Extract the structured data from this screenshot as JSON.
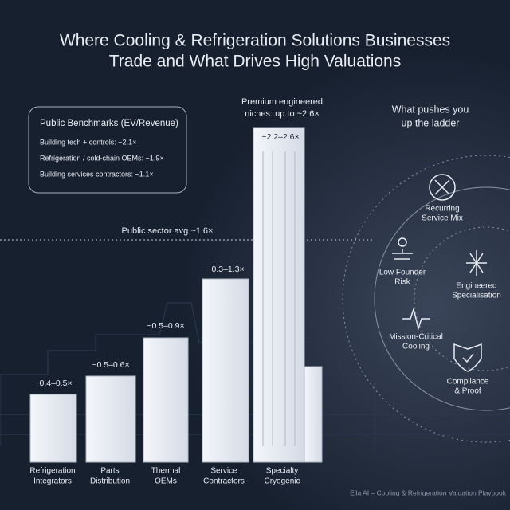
{
  "title": [
    "Where Cooling & Refrigeration Solutions Businesses",
    "Trade and What Drives High Valuations"
  ],
  "benchmarks": {
    "title": "Public Benchmarks (EV/Revenue)",
    "items": [
      "Building tech + controls: ~2.1×",
      "Refrigeration / cold-chain OEMs: ~1.9×",
      "Building services contractors: ~1.1×"
    ]
  },
  "sector_avg": "Public sector avg ~1.6×",
  "premium_note": [
    "Premium engineered",
    "niches: up to ~2.6×"
  ],
  "buildings": [
    {
      "range": "~0.4–0.5×",
      "label": [
        "Refrigeration",
        "Integrators"
      ]
    },
    {
      "range": "~0.5–0.6×",
      "label": [
        "Parts",
        "Distribution"
      ]
    },
    {
      "range": "~0.5–0.9×",
      "label": [
        "Thermal",
        "OEMs"
      ]
    },
    {
      "range": "~0.3–1.3×",
      "label": [
        "Service",
        "Contractors"
      ]
    },
    {
      "range": "~2.2–2.6×",
      "label": [
        "Specialty",
        "Cryogenic"
      ]
    }
  ],
  "ladder": {
    "title": [
      "What pushes you",
      "up the ladder"
    ],
    "items": [
      [
        "Recurring",
        "Service Mix"
      ],
      [
        "Low Founder",
        "Risk"
      ],
      [
        "Engineered",
        "Specialisation"
      ],
      [
        "Mission-Critical",
        "Cooling"
      ],
      [
        "Compliance",
        "& Proof"
      ]
    ]
  },
  "footer": "Ella AI – Cooling & Refrigeration Valuation Playbook"
}
